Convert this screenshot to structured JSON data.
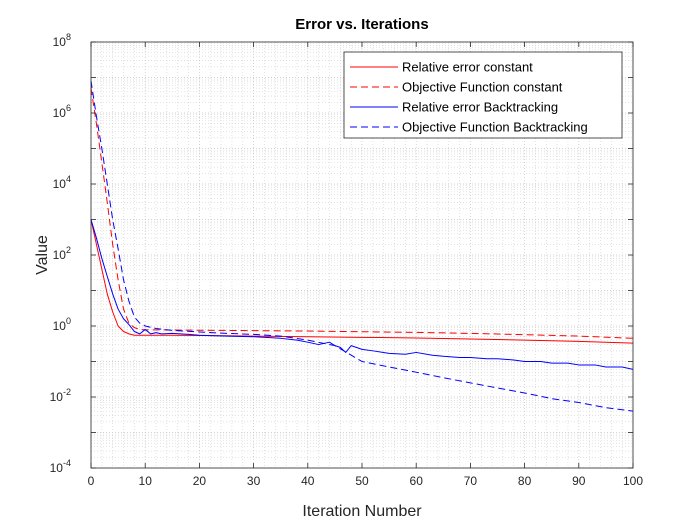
{
  "chart_data": {
    "type": "line",
    "title": "Error vs. Iterations",
    "xlabel": "Iteration Number",
    "ylabel": "Value",
    "xlim": [
      0,
      100
    ],
    "ylim": [
      0.0001,
      100000000
    ],
    "yscale": "log",
    "xticks": [
      0,
      10,
      20,
      30,
      40,
      50,
      60,
      70,
      80,
      90,
      100
    ],
    "yticks": [
      {
        "base": "10",
        "exp": "-4",
        "value": 0.0001
      },
      {
        "base": "10",
        "exp": "-2",
        "value": 0.01
      },
      {
        "base": "10",
        "exp": "0",
        "value": 1
      },
      {
        "base": "10",
        "exp": "2",
        "value": 100
      },
      {
        "base": "10",
        "exp": "4",
        "value": 10000
      },
      {
        "base": "10",
        "exp": "6",
        "value": 1000000
      },
      {
        "base": "10",
        "exp": "8",
        "value": 100000000
      }
    ],
    "grid": true,
    "minor_grid": true,
    "legend_position": "top-right",
    "series": [
      {
        "name": "Relative error constant",
        "color": "#ff0000",
        "dash": "solid",
        "x": [
          0,
          1,
          2,
          3,
          4,
          5,
          6,
          7,
          8,
          10,
          12,
          15,
          20,
          25,
          30,
          40,
          50,
          60,
          70,
          80,
          90,
          100
        ],
        "y": [
          1000,
          200,
          40,
          8,
          2.5,
          1.0,
          0.7,
          0.6,
          0.55,
          0.55,
          0.55,
          0.55,
          0.54,
          0.53,
          0.52,
          0.5,
          0.48,
          0.46,
          0.43,
          0.4,
          0.37,
          0.33
        ]
      },
      {
        "name": "Objective Function constant",
        "color": "#ff0000",
        "dash": "dashed",
        "x": [
          0,
          1,
          2,
          3,
          4,
          5,
          6,
          7,
          8,
          9,
          10,
          12,
          15,
          20,
          30,
          40,
          50,
          60,
          70,
          80,
          90,
          100
        ],
        "y": [
          5000000,
          500000,
          40000,
          3000,
          200,
          20,
          3,
          1.2,
          0.9,
          0.8,
          0.78,
          0.78,
          0.77,
          0.76,
          0.74,
          0.72,
          0.69,
          0.66,
          0.62,
          0.57,
          0.52,
          0.45
        ]
      },
      {
        "name": "Relative error Backtracking",
        "color": "#0000ff",
        "dash": "solid",
        "x": [
          0,
          1,
          2,
          3,
          4,
          5,
          6,
          7,
          8,
          9,
          10,
          11,
          12,
          13,
          15,
          18,
          20,
          25,
          30,
          33,
          35,
          38,
          40,
          42,
          44,
          45,
          46,
          47,
          48,
          50,
          52,
          55,
          58,
          60,
          63,
          65,
          68,
          70,
          73,
          75,
          78,
          80,
          83,
          85,
          88,
          90,
          93,
          95,
          98,
          100
        ],
        "y": [
          1000,
          300,
          80,
          25,
          8,
          3,
          1.6,
          1.1,
          0.7,
          0.6,
          0.8,
          0.6,
          0.65,
          0.6,
          0.62,
          0.58,
          0.55,
          0.52,
          0.5,
          0.47,
          0.45,
          0.4,
          0.35,
          0.3,
          0.35,
          0.28,
          0.25,
          0.18,
          0.28,
          0.22,
          0.2,
          0.17,
          0.16,
          0.18,
          0.15,
          0.14,
          0.13,
          0.13,
          0.12,
          0.12,
          0.11,
          0.1,
          0.1,
          0.09,
          0.09,
          0.08,
          0.08,
          0.07,
          0.07,
          0.06
        ]
      },
      {
        "name": "Objective Function Backtracking",
        "color": "#0000ff",
        "dash": "dashed",
        "x": [
          0,
          1,
          2,
          3,
          4,
          5,
          6,
          7,
          8,
          9,
          10,
          12,
          15,
          20,
          25,
          30,
          35,
          40,
          45,
          50,
          55,
          60,
          65,
          70,
          75,
          80,
          85,
          90,
          95,
          100
        ],
        "y": [
          8000000,
          800000,
          100000,
          10000,
          1000,
          150,
          20,
          5,
          1.8,
          1.2,
          1.0,
          0.85,
          0.75,
          0.68,
          0.62,
          0.58,
          0.52,
          0.4,
          0.28,
          0.1,
          0.07,
          0.05,
          0.035,
          0.025,
          0.018,
          0.013,
          0.009,
          0.007,
          0.005,
          0.004
        ]
      }
    ]
  }
}
